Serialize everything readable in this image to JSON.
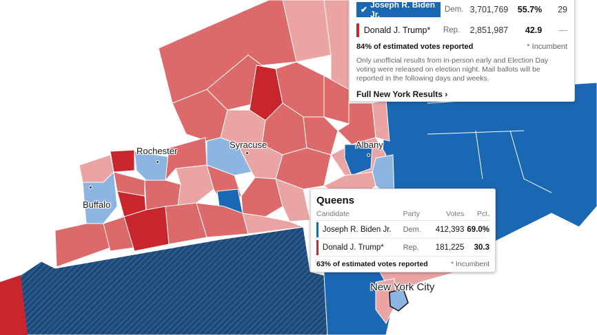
{
  "colors": {
    "dem_strong": "#1a67b3",
    "dem_light": "#8db5e2",
    "rep_strong": "#c8262c",
    "rep_mid": "#dd6a6a",
    "rep_light": "#eaa4a4",
    "hatch_blue": "#1e4a7a"
  },
  "cities": {
    "rochester": "Rochester",
    "syracuse": "Syracuse",
    "albany": "Albany",
    "buffalo": "Buffalo",
    "nyc": "New York City"
  },
  "state_results": {
    "candidates": [
      {
        "name": "Joseph R. Biden Jr.",
        "party": "Dem.",
        "votes": "3,701,769",
        "pct": "55.7%",
        "ev": "29",
        "winner": true
      },
      {
        "name": "Donald J. Trump*",
        "party": "Rep.",
        "votes": "2,851,987",
        "pct": "42.9",
        "ev": "—",
        "winner": false
      }
    ],
    "reporting": "84% of estimated votes reported",
    "incumbent_note": "* Incumbent",
    "note": "Only unofficial results from in-person early and Election Day voting were released on election night. Mail ballots will be reported in the following days and weeks.",
    "link": "Full New York Results ›"
  },
  "county_results": {
    "title": "Queens",
    "headers": {
      "candidate": "Candidate",
      "party": "Party",
      "votes": "Votes",
      "pct": "Pct."
    },
    "candidates": [
      {
        "name": "Joseph R. Biden Jr.",
        "party": "Dem.",
        "votes": "412,393",
        "pct": "69.0%"
      },
      {
        "name": "Donald J. Trump*",
        "party": "Rep.",
        "votes": "181,225",
        "pct": "30.3"
      }
    ],
    "reporting": "63% of estimated votes reported",
    "incumbent_note": "* Incumbent"
  }
}
